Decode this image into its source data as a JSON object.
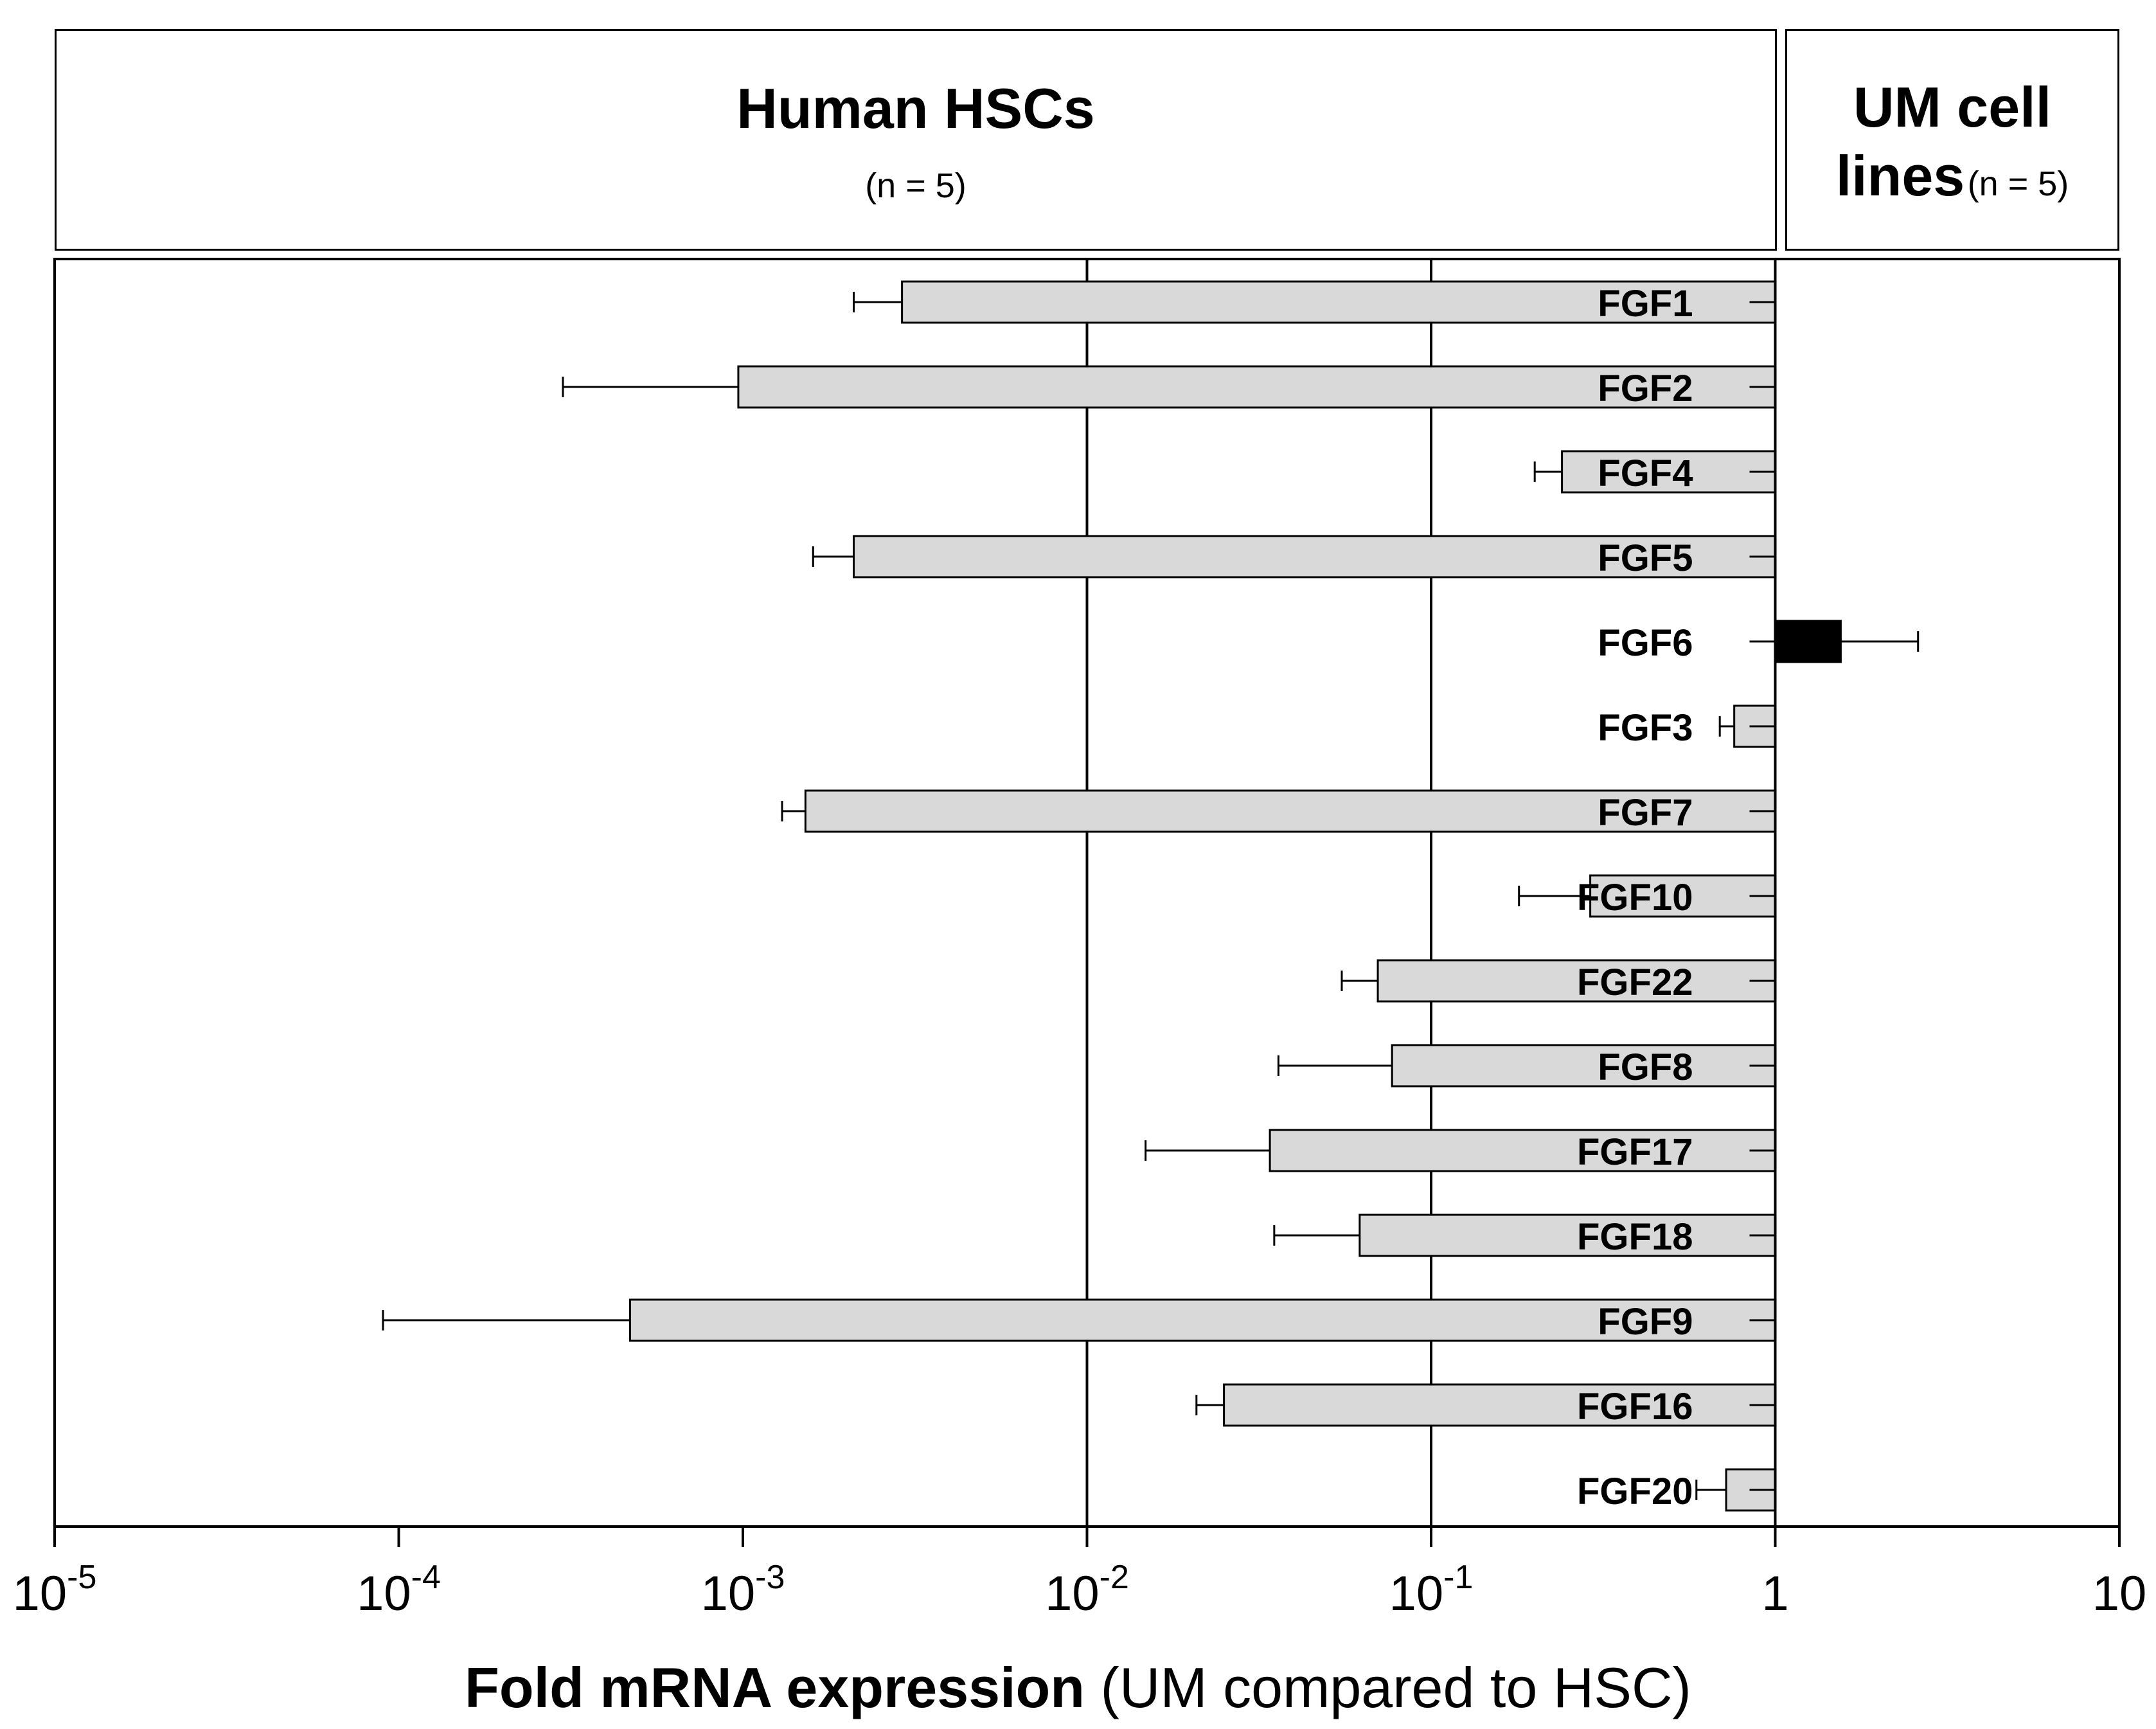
{
  "header": {
    "left_title": "Human HSCs",
    "left_n": "(n = 5)",
    "right_title_line1": "UM cell",
    "right_title_line2": "lines",
    "right_n": "(n = 5)"
  },
  "colors": {
    "low_bar": "#d9d9d9",
    "high_bar": "#000000",
    "axis": "#000000"
  },
  "chart_data": {
    "type": "bar",
    "orientation": "horizontal",
    "x_scale": "log10",
    "xlim": [
      1e-05,
      10
    ],
    "x_ticks": [
      {
        "value": 1e-05,
        "base": "10",
        "exp": "-5"
      },
      {
        "value": 0.0001,
        "base": "10",
        "exp": "-4"
      },
      {
        "value": 0.001,
        "base": "10",
        "exp": "-3"
      },
      {
        "value": 0.01,
        "base": "10",
        "exp": "-2"
      },
      {
        "value": 0.1,
        "base": "10",
        "exp": "-1"
      },
      {
        "value": 1,
        "base": "1",
        "exp": ""
      },
      {
        "value": 10,
        "base": "10",
        "exp": ""
      }
    ],
    "vertical_gridlines_at": [
      0.01,
      0.1
    ],
    "xlabel_bold": "Fold mRNA expression",
    "xlabel_rest": " (UM compared to HSC)",
    "categories": [
      "FGF1",
      "FGF2",
      "FGF4",
      "FGF5",
      "FGF6",
      "FGF3",
      "FGF7",
      "FGF10",
      "FGF22",
      "FGF8",
      "FGF17",
      "FGF18",
      "FGF9",
      "FGF16",
      "FGF20"
    ],
    "values": [
      0.0029,
      0.00097,
      0.24,
      0.0021,
      1.55,
      0.76,
      0.00152,
      0.29,
      0.07,
      0.077,
      0.034,
      0.062,
      0.00047,
      0.025,
      0.72
    ],
    "error_ends": [
      0.0021,
      0.0003,
      0.2,
      0.0016,
      2.6,
      0.69,
      0.0013,
      0.18,
      0.055,
      0.036,
      0.0148,
      0.035,
      9e-05,
      0.0208,
      0.59
    ]
  }
}
